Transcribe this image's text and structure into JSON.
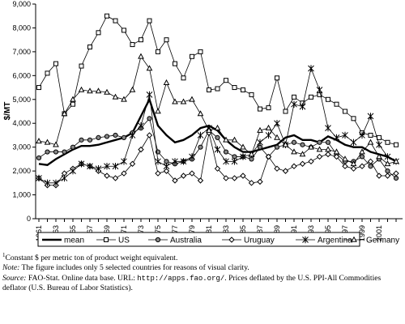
{
  "chart_data": {
    "type": "line",
    "ylabel": "$/MT",
    "ylim": [
      0,
      9000
    ],
    "yticks": [
      "0",
      "1,000",
      "2,000",
      "3,000",
      "4,000",
      "5,000",
      "6,000",
      "7,000",
      "8,000",
      "9,000"
    ],
    "x": [
      1961,
      1962,
      1963,
      1964,
      1965,
      1966,
      1967,
      1968,
      1969,
      1970,
      1971,
      1972,
      1973,
      1974,
      1975,
      1976,
      1977,
      1978,
      1979,
      1980,
      1981,
      1982,
      1983,
      1984,
      1985,
      1986,
      1987,
      1988,
      1989,
      1990,
      1991,
      1992,
      1993,
      1994,
      1995,
      1996,
      1997,
      1998,
      1999,
      2000,
      2001,
      2002,
      2003
    ],
    "xticks": [
      "1961",
      "1963",
      "1965",
      "1967",
      "1969",
      "1971",
      "1973",
      "1975",
      "1977",
      "1979",
      "1981",
      "1983",
      "1985",
      "1987",
      "1989",
      "1991",
      "1993",
      "1995",
      "1997",
      "1999",
      "2001"
    ],
    "legend_position": "bottom",
    "grid": false,
    "series": [
      {
        "name": "mean",
        "marker": "none",
        "values": [
          2300,
          2250,
          2500,
          2700,
          2900,
          3050,
          3050,
          3100,
          3200,
          3300,
          3400,
          3600,
          4300,
          5000,
          3900,
          3500,
          3200,
          3300,
          3500,
          3800,
          3900,
          3700,
          3300,
          3000,
          2800,
          2800,
          2900,
          3000,
          3100,
          3400,
          3500,
          3300,
          3300,
          3200,
          3450,
          3300,
          3100,
          3000,
          3000,
          2800,
          2700,
          2600,
          2400
        ]
      },
      {
        "name": "US",
        "marker": "square",
        "values": [
          5500,
          6100,
          6500,
          4400,
          4800,
          6400,
          7200,
          7800,
          8500,
          8300,
          7900,
          7300,
          7500,
          8300,
          7000,
          7500,
          6500,
          5900,
          6800,
          7000,
          5400,
          5450,
          5800,
          5500,
          5400,
          5200,
          4600,
          4650,
          5900,
          4500,
          5100,
          4850,
          5100,
          5200,
          5000,
          4800,
          4500,
          4200,
          3600,
          3500,
          3400,
          3200,
          3100
        ]
      },
      {
        "name": "Australia",
        "marker": "circle",
        "values": [
          2550,
          2800,
          2800,
          2800,
          3000,
          3300,
          3300,
          3400,
          3450,
          3500,
          3400,
          3600,
          3800,
          4200,
          2800,
          2400,
          2300,
          2400,
          2500,
          3000,
          3700,
          3400,
          2800,
          2600,
          2600,
          2500,
          3000,
          2600,
          3000,
          3100,
          3200,
          3100,
          3000,
          3200,
          3200,
          2700,
          2400,
          2400,
          2600,
          2200,
          2500,
          2000,
          1700
        ]
      },
      {
        "name": "Uruguay",
        "marker": "diamond",
        "values": [
          1700,
          1400,
          1400,
          1900,
          2100,
          2300,
          2200,
          2000,
          1800,
          1700,
          1900,
          2300,
          2900,
          3500,
          1900,
          2000,
          1600,
          1800,
          1900,
          1600,
          3600,
          2100,
          1700,
          1700,
          1800,
          1500,
          1550,
          2600,
          2100,
          2000,
          2200,
          2300,
          2400,
          2600,
          2700,
          2600,
          2200,
          2100,
          2200,
          2400,
          1800,
          1800,
          1900
        ]
      },
      {
        "name": "Argentina",
        "marker": "star",
        "values": [
          1700,
          1500,
          1500,
          1700,
          2000,
          2300,
          2200,
          2100,
          2200,
          2200,
          2400,
          3500,
          3900,
          5200,
          2400,
          2200,
          2400,
          2400,
          2600,
          3500,
          3800,
          2900,
          2400,
          2400,
          2600,
          2700,
          3200,
          3500,
          4000,
          3100,
          4800,
          4700,
          6300,
          5400,
          3800,
          3400,
          3500,
          3200,
          3500,
          4300,
          3100,
          2600,
          2400
        ]
      },
      {
        "name": "Germany",
        "marker": "triangle",
        "values": [
          3250,
          3200,
          3100,
          4400,
          5000,
          5400,
          5350,
          5350,
          5300,
          5100,
          5000,
          5400,
          6800,
          6300,
          4500,
          5700,
          4900,
          4900,
          5000,
          4400,
          3700,
          3800,
          3300,
          3300,
          3000,
          2700,
          3700,
          3800,
          3400,
          3100,
          2800,
          2700,
          3000,
          2900,
          2900,
          2800,
          2500,
          2300,
          2800,
          3200,
          2600,
          2300,
          2400
        ]
      }
    ]
  },
  "notes": {
    "footnote_marker": "1",
    "footnote_text": "Constant $ per metric ton of product weight equivalent.",
    "note_label": "Note:",
    "note_text": " The figure includes only 5 selected countries for reasons of visual clarity.",
    "source_label": "Source:",
    "source_text_before_url": " FAO-Stat. Online data base. URL: ",
    "source_url": "http://apps.fao.org/",
    "source_text_after_url": ". Prices deflated by the U.S. PPI-All Commodities deflator (U.S. Bureau of Labor Statistics)."
  }
}
